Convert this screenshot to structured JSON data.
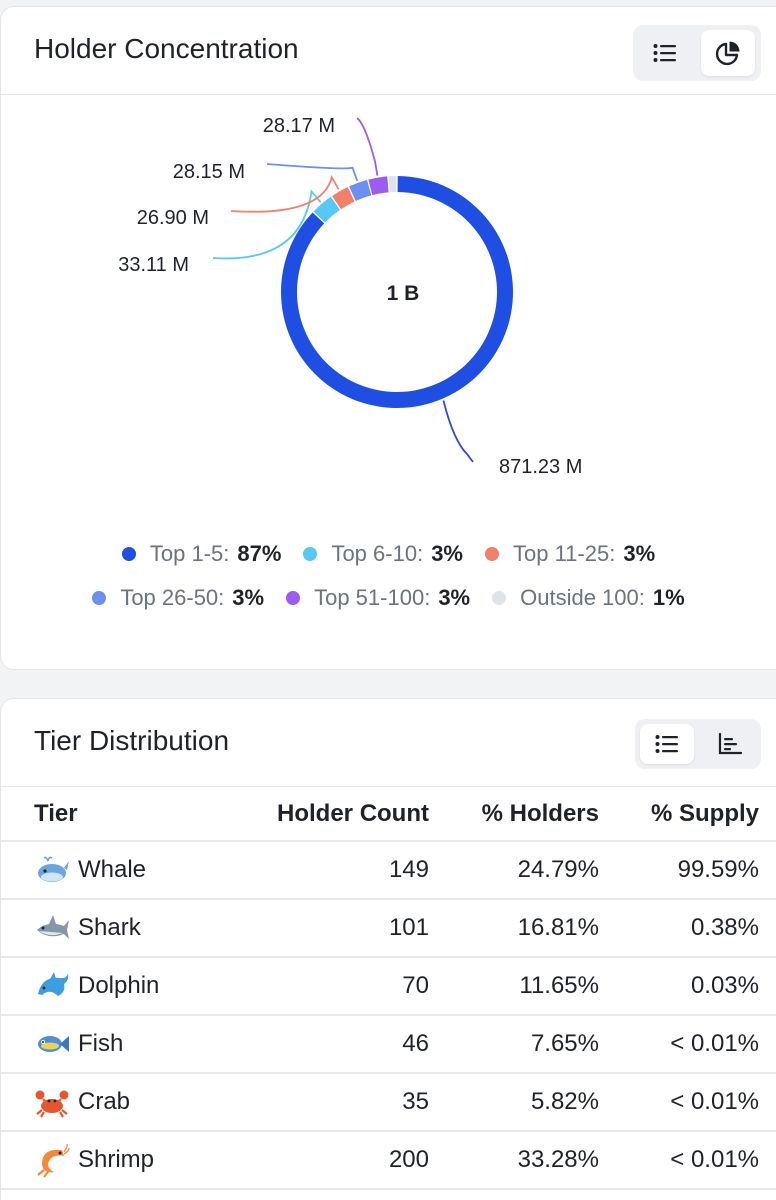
{
  "holder_concentration": {
    "title": "Holder Concentration",
    "view_toggle": {
      "list_icon": "list-icon",
      "pie_icon": "pie-chart-icon",
      "active": "pie"
    }
  },
  "chart_data": {
    "type": "pie",
    "variant": "donut",
    "center_label": "1 B",
    "slices": [
      {
        "name": "Top 1-5",
        "value": 871.23,
        "value_label": "871.23 M",
        "percent_label": "87%",
        "color": "#1f4ee3"
      },
      {
        "name": "Top 6-10",
        "value": 33.11,
        "value_label": "33.11 M",
        "percent_label": "3%",
        "color": "#56c8f5"
      },
      {
        "name": "Top 11-25",
        "value": 26.9,
        "value_label": "26.90 M",
        "percent_label": "3%",
        "color": "#f0806a"
      },
      {
        "name": "Top 26-50",
        "value": 28.15,
        "value_label": "28.15 M",
        "percent_label": "3%",
        "color": "#6c8ff2"
      },
      {
        "name": "Top 51-100",
        "value": 28.17,
        "value_label": "28.17 M",
        "percent_label": "3%",
        "color": "#9b5cf0"
      },
      {
        "name": "Outside 100",
        "value": 12.44,
        "value_label": "",
        "percent_label": "1%",
        "color": "#dfe3ea"
      }
    ],
    "legend": "bottom"
  },
  "tier_distribution": {
    "title": "Tier Distribution",
    "view_toggle": {
      "list_icon": "list-icon",
      "bar_icon": "bar-chart-icon",
      "active": "list"
    },
    "columns": [
      "Tier",
      "Holder Count",
      "% Holders",
      "% Supply"
    ],
    "rows": [
      {
        "icon": "whale-icon",
        "tier": "Whale",
        "count": "149",
        "pct_holders": "24.79%",
        "pct_supply": "99.59%"
      },
      {
        "icon": "shark-icon",
        "tier": "Shark",
        "count": "101",
        "pct_holders": "16.81%",
        "pct_supply": "0.38%"
      },
      {
        "icon": "dolphin-icon",
        "tier": "Dolphin",
        "count": "70",
        "pct_holders": "11.65%",
        "pct_supply": "0.03%"
      },
      {
        "icon": "fish-icon",
        "tier": "Fish",
        "count": "46",
        "pct_holders": "7.65%",
        "pct_supply": "< 0.01%"
      },
      {
        "icon": "crab-icon",
        "tier": "Crab",
        "count": "35",
        "pct_holders": "5.82%",
        "pct_supply": "< 0.01%"
      },
      {
        "icon": "shrimp-icon",
        "tier": "Shrimp",
        "count": "200",
        "pct_holders": "33.28%",
        "pct_supply": "< 0.01%"
      }
    ]
  }
}
